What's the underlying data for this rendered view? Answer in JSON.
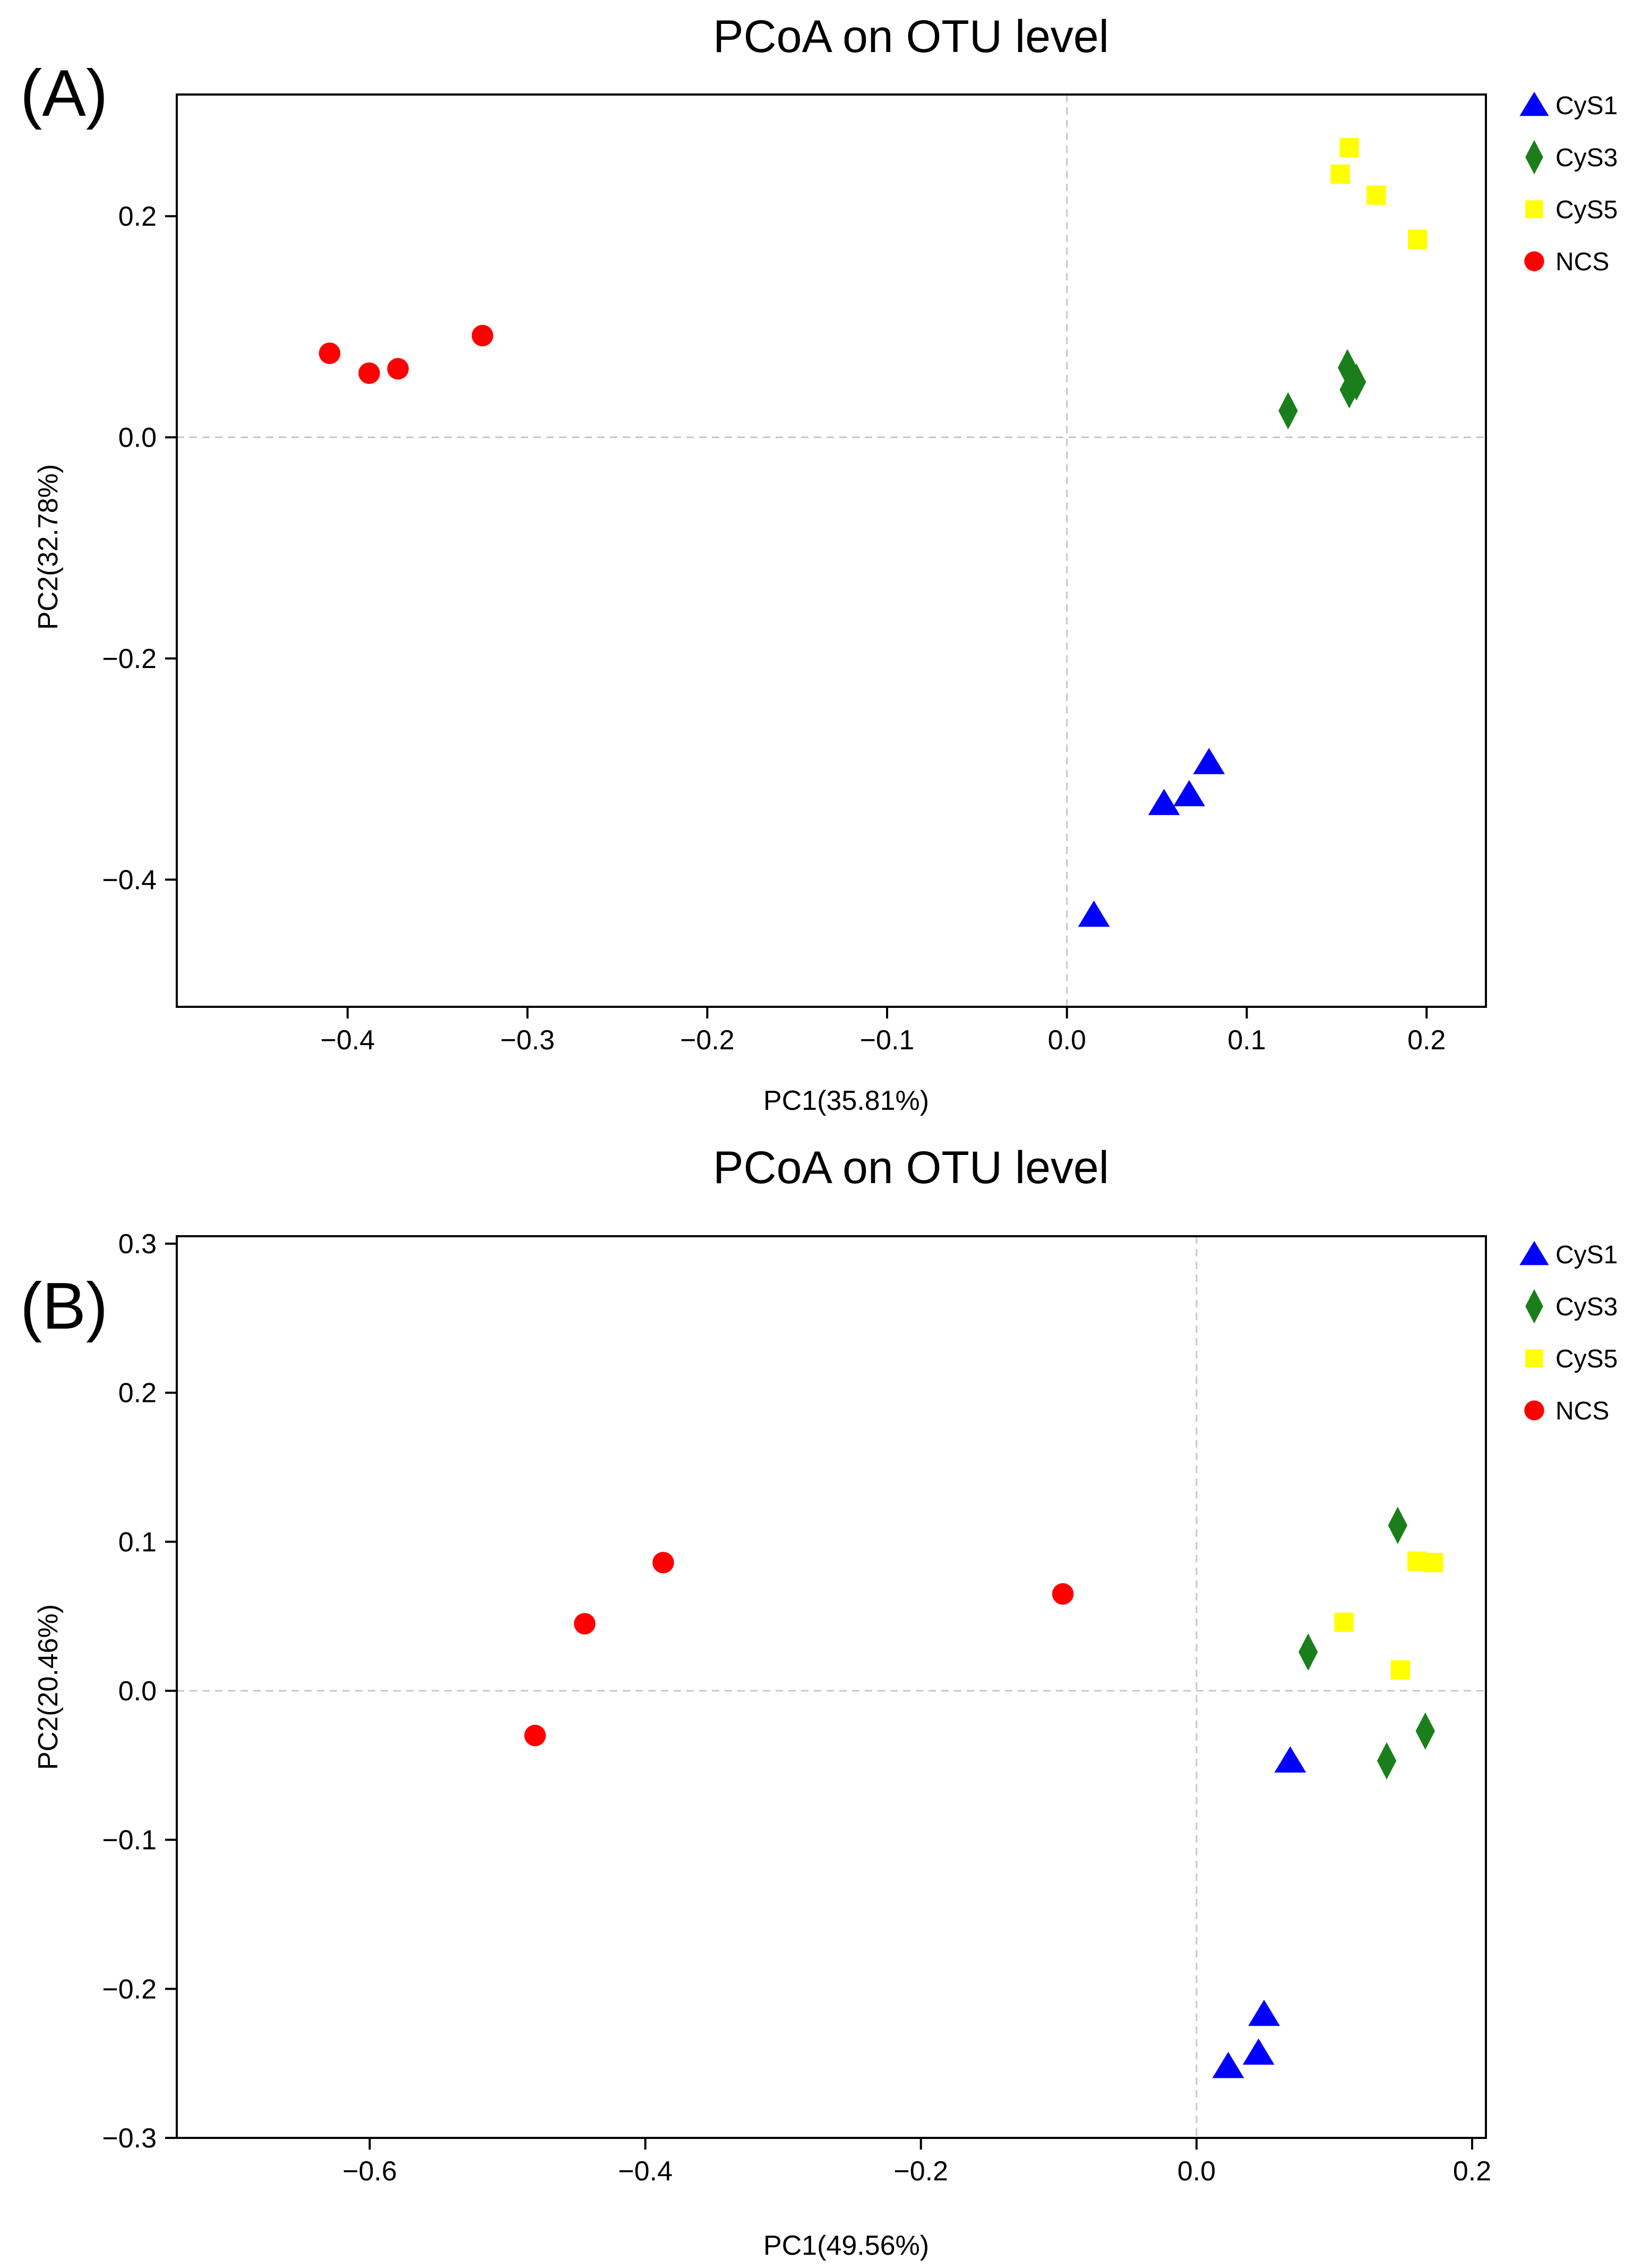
{
  "chart_data": [
    {
      "type": "scatter",
      "panel_label": "(A)",
      "title": "PCoA on OTU level",
      "xlabel": "PC1(35.81%)",
      "ylabel": "PC2(32.78%)",
      "xlim": [
        -0.495,
        0.233
      ],
      "ylim": [
        -0.515,
        0.31
      ],
      "xticks": [
        -0.4,
        -0.3,
        -0.2,
        -0.1,
        0.0,
        0.1,
        0.2
      ],
      "xtick_labels": [
        "−0.4",
        "−0.3",
        "−0.2",
        "−0.1",
        "0.0",
        "0.1",
        "0.2"
      ],
      "yticks": [
        -0.4,
        -0.2,
        0.0,
        0.2
      ],
      "ytick_labels": [
        "−0.4",
        "−0.2",
        "0.0",
        "0.2"
      ],
      "zero_lines": true,
      "legend_position": "outside-top-right",
      "series": [
        {
          "name": "CyS1",
          "marker": "triangle",
          "color": "#0000ff",
          "points": [
            [
              0.015,
              -0.432
            ],
            [
              0.054,
              -0.331
            ],
            [
              0.068,
              -0.323
            ],
            [
              0.079,
              -0.294
            ]
          ]
        },
        {
          "name": "CyS3",
          "marker": "diamond",
          "color": "#1a7f1a",
          "points": [
            [
              0.123,
              0.024
            ],
            [
              0.156,
              0.063
            ],
            [
              0.157,
              0.043
            ],
            [
              0.161,
              0.05
            ]
          ]
        },
        {
          "name": "CyS5",
          "marker": "square",
          "color": "#ffff00",
          "points": [
            [
              0.152,
              0.238
            ],
            [
              0.157,
              0.262
            ],
            [
              0.172,
              0.219
            ],
            [
              0.195,
              0.179
            ]
          ]
        },
        {
          "name": "NCS",
          "marker": "circle",
          "color": "#ff0000",
          "points": [
            [
              -0.41,
              0.076
            ],
            [
              -0.388,
              0.058
            ],
            [
              -0.372,
              0.062
            ],
            [
              -0.325,
              0.092
            ]
          ]
        }
      ]
    },
    {
      "type": "scatter",
      "panel_label": "(B)",
      "title": "PCoA on OTU level",
      "xlabel": "PC1(49.56%)",
      "ylabel": "PC2(20.46%)",
      "xlim": [
        -0.74,
        0.21
      ],
      "ylim": [
        -0.3,
        0.305
      ],
      "xticks": [
        -0.6,
        -0.4,
        -0.2,
        0.0,
        0.2
      ],
      "xtick_labels": [
        "−0.6",
        "−0.4",
        "−0.2",
        "0.0",
        "0.2"
      ],
      "yticks": [
        -0.3,
        -0.2,
        -0.1,
        0.0,
        0.1,
        0.2,
        0.3
      ],
      "ytick_labels": [
        "−0.3",
        "−0.2",
        "−0.1",
        "0.0",
        "0.1",
        "0.2",
        "0.3"
      ],
      "zero_lines": true,
      "legend_position": "outside-top-right",
      "series": [
        {
          "name": "CyS1",
          "marker": "triangle",
          "color": "#0000ff",
          "points": [
            [
              0.068,
              -0.047
            ],
            [
              0.049,
              -0.217
            ],
            [
              0.045,
              -0.243
            ],
            [
              0.023,
              -0.252
            ]
          ]
        },
        {
          "name": "CyS3",
          "marker": "diamond",
          "color": "#1a7f1a",
          "points": [
            [
              0.146,
              0.111
            ],
            [
              0.081,
              0.026
            ],
            [
              0.138,
              -0.047
            ],
            [
              0.166,
              -0.027
            ]
          ]
        },
        {
          "name": "CyS5",
          "marker": "square",
          "color": "#ffff00",
          "points": [
            [
              0.16,
              0.087
            ],
            [
              0.172,
              0.086
            ],
            [
              0.107,
              0.046
            ],
            [
              0.148,
              0.014
            ]
          ]
        },
        {
          "name": "NCS",
          "marker": "circle",
          "color": "#ff0000",
          "points": [
            [
              -0.387,
              0.086
            ],
            [
              -0.444,
              0.045
            ],
            [
              -0.48,
              -0.03
            ],
            [
              -0.097,
              0.065
            ]
          ]
        }
      ]
    }
  ]
}
